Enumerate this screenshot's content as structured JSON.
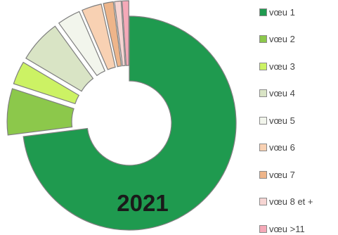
{
  "chart_data": {
    "type": "pie",
    "title": "2021",
    "categories": [
      "vœu 1",
      "vœu 2",
      "vœu 3",
      "vœu 4",
      "vœu 5",
      "vœu 6",
      "vœu 7",
      "vœu 8 et +",
      "vœu >11"
    ],
    "values": [
      73,
      7,
      3.5,
      6.5,
      3.5,
      3,
      1.5,
      1,
      1
    ],
    "colors": [
      "#1f9a4f",
      "#8cc84b",
      "#ccf264",
      "#d9e4c5",
      "#f2f5ec",
      "#f8d1b3",
      "#eeb58a",
      "#f6d5d3",
      "#f5a9b8"
    ],
    "exploded": [
      false,
      true,
      true,
      true,
      true,
      true,
      true,
      true,
      true
    ],
    "legend_position": "right"
  }
}
